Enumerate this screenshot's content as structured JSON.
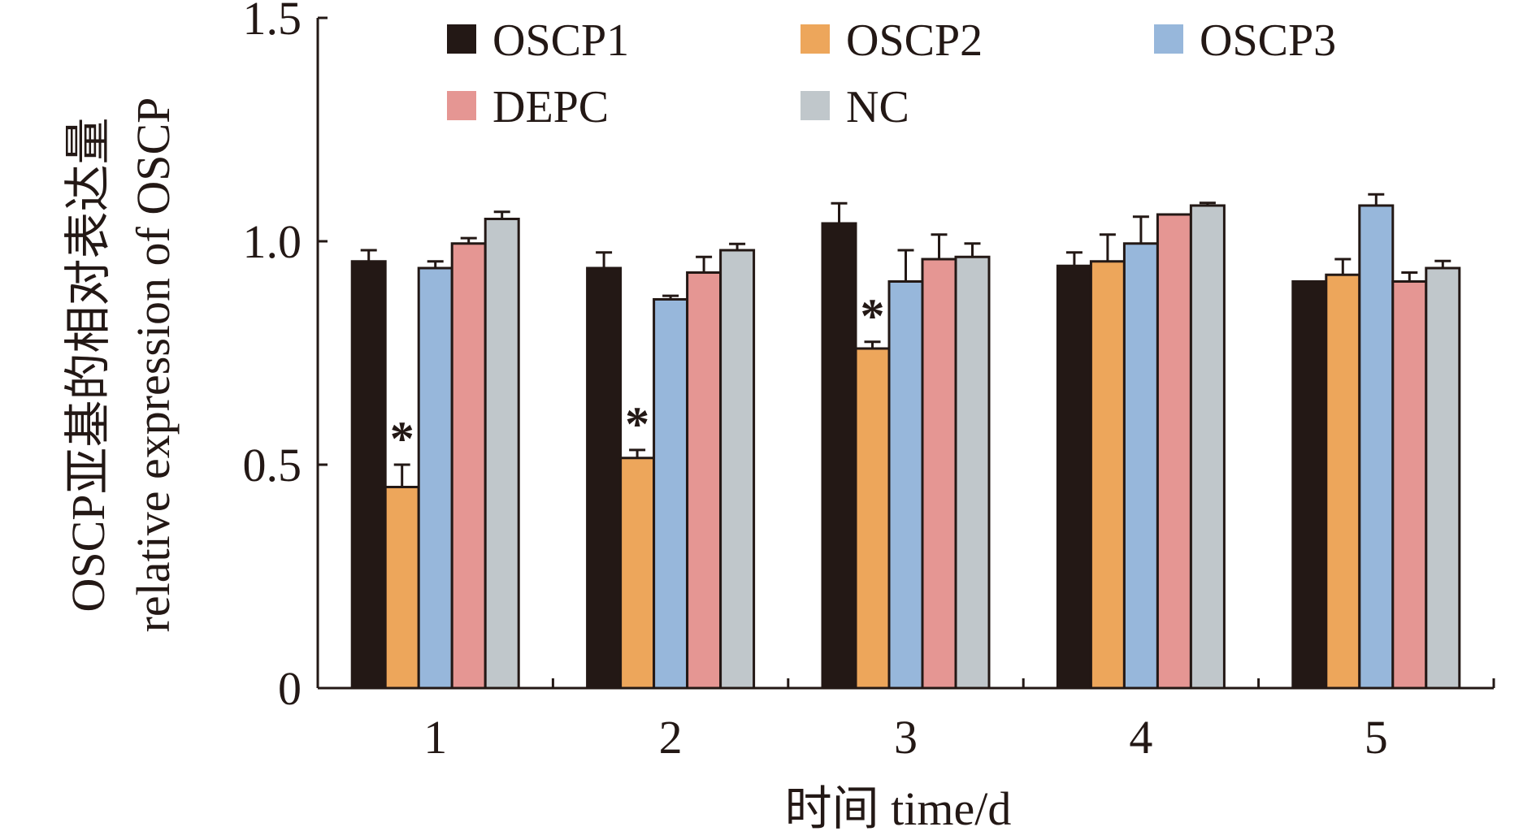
{
  "chart_data": {
    "type": "bar",
    "ylabel_cn": "OSCP亚基的相对表达量",
    "ylabel_en": "relative expression of OSCP",
    "xlabel": "时间 time/d",
    "categories": [
      "1",
      "2",
      "3",
      "4",
      "5"
    ],
    "ylim": [
      0,
      1.5
    ],
    "yticks": [
      0,
      0.5,
      1.0,
      1.5
    ],
    "ytick_labels": [
      "0",
      "0.5",
      "1.0",
      "1.5"
    ],
    "grid": false,
    "legend_position": "top",
    "series": [
      {
        "name": "OSCP1",
        "color": "#231815",
        "values": [
          0.955,
          0.94,
          1.04,
          0.945,
          0.91
        ],
        "errors": [
          0.025,
          0.035,
          0.045,
          0.03,
          0.0
        ]
      },
      {
        "name": "OSCP2",
        "color": "#EDA65B",
        "values": [
          0.45,
          0.515,
          0.76,
          0.955,
          0.925
        ],
        "errors": [
          0.05,
          0.018,
          0.015,
          0.06,
          0.035
        ]
      },
      {
        "name": "OSCP3",
        "color": "#97B7DB",
        "values": [
          0.94,
          0.87,
          0.91,
          0.995,
          1.08
        ],
        "errors": [
          0.015,
          0.008,
          0.07,
          0.06,
          0.025
        ]
      },
      {
        "name": "DEPC",
        "color": "#E59693",
        "values": [
          0.995,
          0.93,
          0.96,
          1.06,
          0.91
        ],
        "errors": [
          0.012,
          0.035,
          0.055,
          0.0,
          0.02
        ]
      },
      {
        "name": "NC",
        "color": "#C0C7CB",
        "values": [
          1.05,
          0.98,
          0.965,
          1.08,
          0.94
        ],
        "errors": [
          0.016,
          0.014,
          0.03,
          0.006,
          0.016
        ]
      }
    ],
    "annotations": [
      {
        "text": "*",
        "category": "1",
        "series": "OSCP2"
      },
      {
        "text": "*",
        "category": "2",
        "series": "OSCP2"
      },
      {
        "text": "*",
        "category": "3",
        "series": "OSCP2"
      }
    ]
  }
}
